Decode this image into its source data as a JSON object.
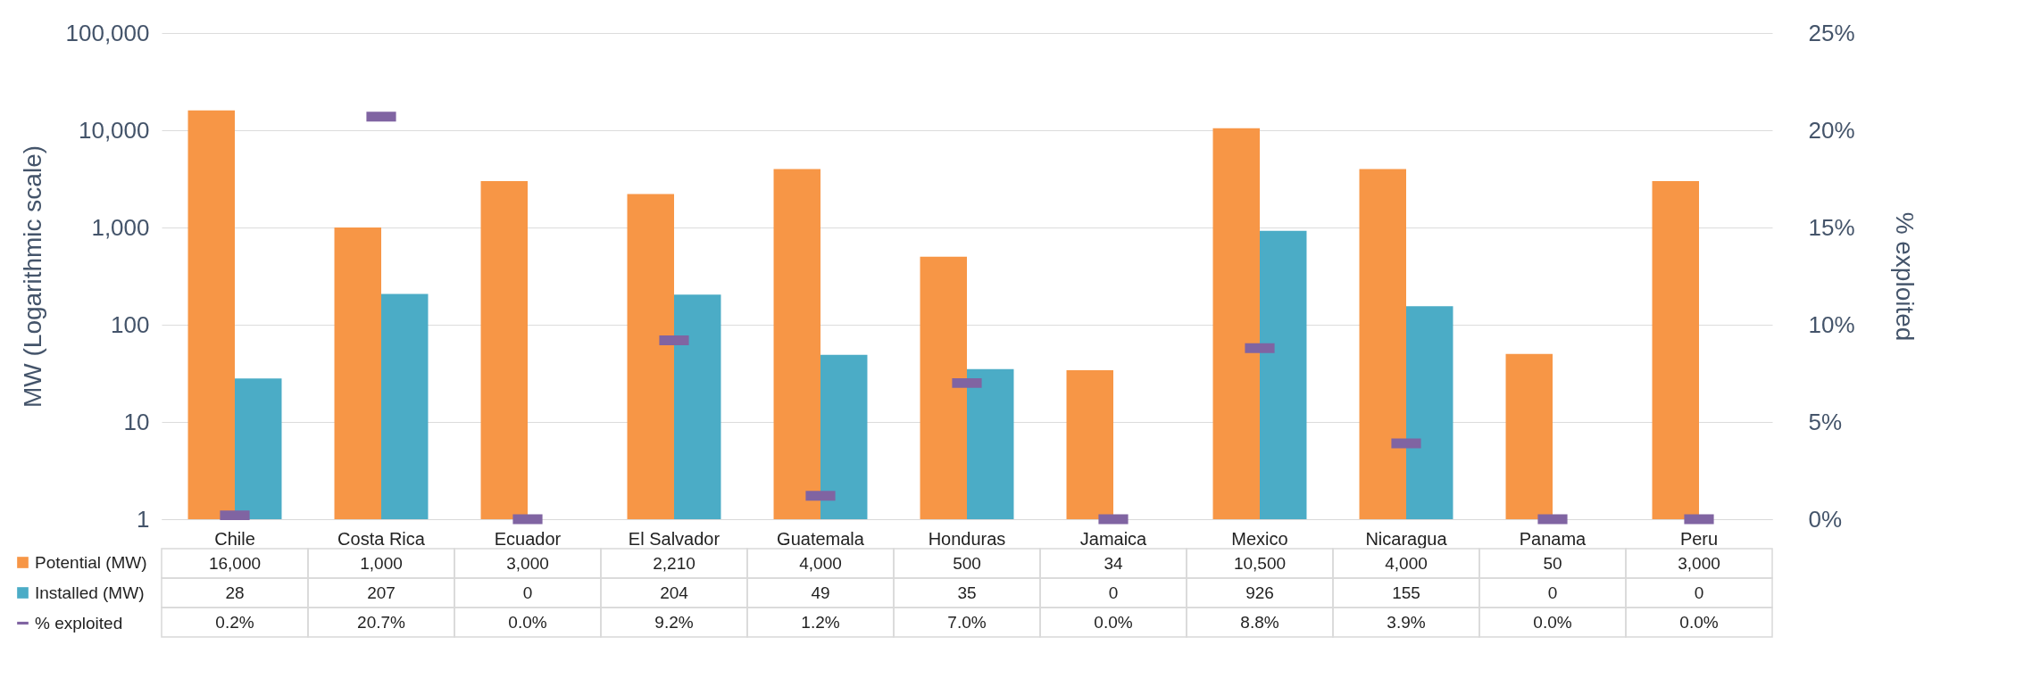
{
  "chart_data": {
    "type": "bar",
    "ylabel": "MW (Logarithmic scale)",
    "y2label": "% exploited",
    "categories": [
      "Chile",
      "Costa Rica",
      "Ecuador",
      "El Salvador",
      "Guatemala",
      "Honduras",
      "Jamaica",
      "Mexico",
      "Nicaragua",
      "Panama",
      "Peru"
    ],
    "series": [
      {
        "name": "Potential (MW)",
        "color": "#f79646",
        "values": [
          16000,
          1000,
          3000,
          2210,
          4000,
          500,
          34,
          10500,
          4000,
          50,
          3000
        ],
        "value_labels": [
          "16,000",
          "1,000",
          "3,000",
          "2,210",
          "4,000",
          "500",
          "34",
          "10,500",
          "4,000",
          "50",
          "3,000"
        ]
      },
      {
        "name": "Installed (MW)",
        "color": "#4bacc6",
        "values": [
          28,
          207,
          null,
          204,
          49,
          35,
          null,
          926,
          155,
          null,
          null
        ],
        "value_labels": [
          "28",
          "207",
          "0",
          "204",
          "49",
          "35",
          "0",
          "926",
          "155",
          "0",
          "0"
        ]
      },
      {
        "name": "% exploited",
        "type": "scatter",
        "axis": "y2",
        "color": "#8064a2",
        "values": [
          0.2,
          20.7,
          0.0,
          9.2,
          1.2,
          7.0,
          0.0,
          8.8,
          3.9,
          0.0,
          0.0
        ],
        "value_labels": [
          "0.2%",
          "20.7%",
          "0.0%",
          "9.2%",
          "1.2%",
          "7.0%",
          "0.0%",
          "8.8%",
          "3.9%",
          "0.0%",
          "0.0%"
        ]
      }
    ],
    "log": true,
    "ylim": [
      1,
      100000
    ],
    "yticks": [
      1,
      10,
      {
        "value": 100,
        "label": "100"
      },
      {
        "value": 1000,
        "label": "1,000"
      },
      {
        "value": 10000,
        "label": "10,000"
      },
      {
        "value": 100000,
        "label": "100,000"
      }
    ],
    "y2lim": [
      0,
      25
    ],
    "y2ticks": [
      {
        "value": 0,
        "label": "0%"
      },
      {
        "value": 5,
        "label": "5%"
      },
      {
        "value": 10,
        "label": "10%"
      },
      {
        "value": 15,
        "label": "15%"
      },
      {
        "value": 20,
        "label": "20%"
      },
      {
        "value": 25,
        "label": "25%"
      }
    ],
    "grid": "y",
    "legend": "bottom left"
  }
}
